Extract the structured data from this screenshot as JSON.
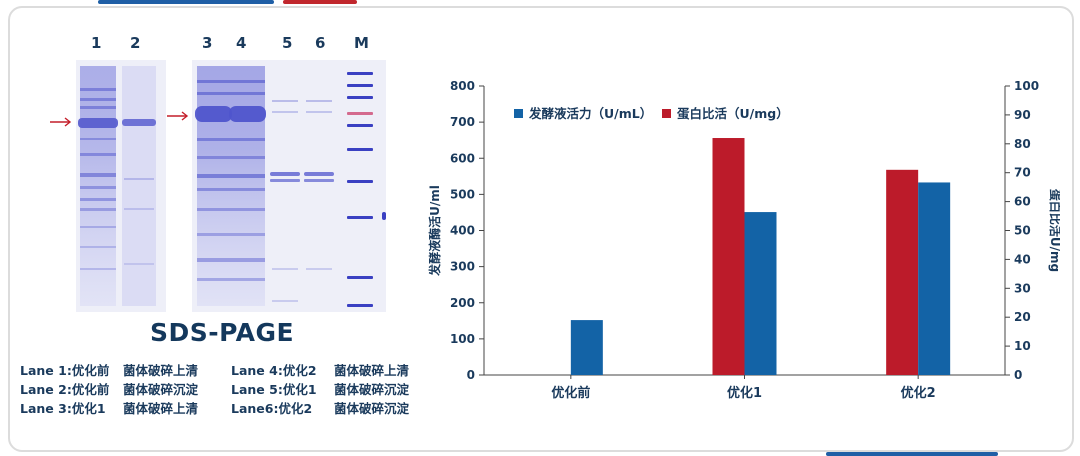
{
  "gel": {
    "lane_numbers": [
      "1",
      "2",
      "3",
      "4",
      "5",
      "6",
      "M"
    ],
    "title": "SDS-PAGE",
    "legend": [
      {
        "lane": "Lane 1:优化前",
        "desc": "菌体破碎上清"
      },
      {
        "lane": "Lane 2:优化前",
        "desc": "菌体破碎沉淀"
      },
      {
        "lane": "Lane 3:优化1",
        "desc": "菌体破碎上清"
      },
      {
        "lane": "Lane 4:优化2",
        "desc": "菌体破碎上清"
      },
      {
        "lane": "Lane 5:优化1",
        "desc": "菌体破碎沉淀"
      },
      {
        "lane": "Lane6:优化2",
        "desc": "菌体破碎沉淀"
      }
    ]
  },
  "colors": {
    "blue": "#1363a6",
    "red": "#bc1b2a",
    "arrow": "#c41e2a",
    "band": "#6b70d6",
    "accent_blue": "#1f5fa6",
    "accent_red": "#c1272d"
  },
  "chart_data": {
    "type": "bar",
    "categories": [
      "优化前",
      "优化1",
      "优化2"
    ],
    "series": [
      {
        "name": "发酵液活力（U/mL）",
        "axis": "left",
        "values": [
          152,
          451,
          533
        ]
      },
      {
        "name": "蛋白比活（U/mg）",
        "axis": "right",
        "values": [
          null,
          82,
          71
        ]
      }
    ],
    "ylabel": "发酵液酶活U/ml",
    "y2label": "蛋白比活U/mg",
    "ylim": [
      0,
      800
    ],
    "yticks": [
      0,
      100,
      200,
      300,
      400,
      500,
      600,
      700,
      800
    ],
    "y2lim": [
      0,
      100
    ],
    "y2ticks": [
      0,
      10,
      20,
      30,
      40,
      50,
      60,
      70,
      80,
      90,
      100
    ],
    "legend_position": "top-left",
    "grid": false
  }
}
